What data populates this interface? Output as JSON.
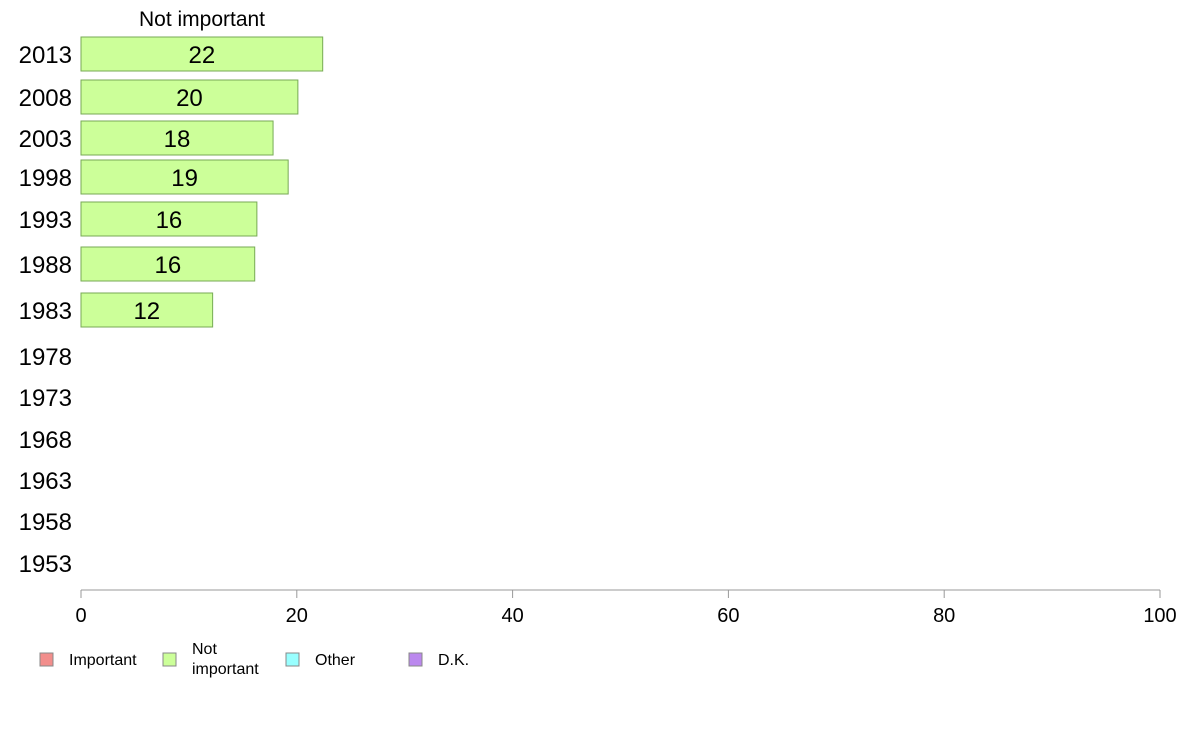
{
  "chart_data": {
    "type": "bar",
    "orientation": "horizontal",
    "stacked": true,
    "categories": [
      "2013",
      "2008",
      "2003",
      "1998",
      "1993",
      "1988",
      "1983",
      "1978",
      "1973",
      "1968",
      "1963",
      "1958",
      "1953"
    ],
    "series": [
      {
        "name": "Important",
        "color": "#f28e8c",
        "values": [
          null,
          null,
          null,
          null,
          null,
          null,
          null,
          null,
          null,
          null,
          null,
          null,
          null
        ]
      },
      {
        "name": "Not important",
        "color": "#ccff99",
        "values": [
          22.4,
          20.1,
          17.8,
          19.2,
          16.3,
          16.1,
          12.2,
          null,
          null,
          null,
          null,
          null,
          null
        ]
      },
      {
        "name": "Other",
        "color": "#99ffff",
        "values": [
          null,
          null,
          null,
          null,
          null,
          null,
          null,
          null,
          null,
          null,
          null,
          null,
          null
        ]
      },
      {
        "name": "D.K.",
        "color": "#bb88ee",
        "values": [
          null,
          null,
          null,
          null,
          null,
          null,
          null,
          null,
          null,
          null,
          null,
          null,
          null
        ]
      }
    ],
    "data_labels": [
      "22",
      "20",
      "18",
      "19",
      "16",
      "16",
      "12",
      "",
      "",
      "",
      "",
      "",
      ""
    ],
    "column_header": "Not important",
    "xlim": [
      0,
      100
    ],
    "x_ticks": [
      0,
      20,
      40,
      60,
      80,
      100
    ],
    "legend": {
      "placement": "bottom-left",
      "labels": [
        "Important",
        "Not\nimportant",
        "Other",
        "D.K."
      ]
    },
    "grid": false
  }
}
